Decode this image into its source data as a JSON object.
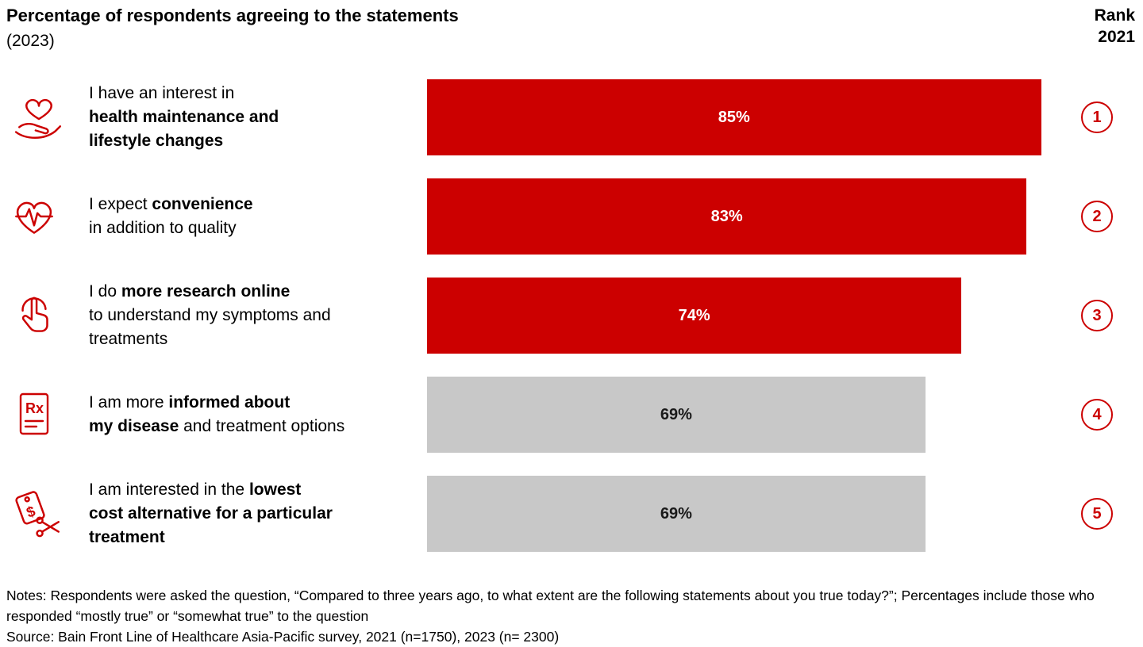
{
  "header": {
    "title": "Percentage of respondents agreeing to the statements",
    "subtitle": "(2023)",
    "rank_label": "Rank",
    "rank_year": "2021"
  },
  "chart_data": {
    "type": "bar",
    "orientation": "horizontal",
    "title": "Percentage of respondents agreeing to the statements (2023)",
    "categories": [
      "I have an interest in health maintenance and lifestyle changes",
      "I expect convenience in addition to quality",
      "I do more research online to understand my symptoms and treatments",
      "I am more informed about my disease and treatment options",
      "I am interested in the lowest cost alternative for a particular treatment"
    ],
    "values": [
      85,
      83,
      74,
      69,
      69
    ],
    "value_labels": [
      "85%",
      "83%",
      "74%",
      "69%",
      "69%"
    ],
    "ranks_2021": [
      1,
      2,
      3,
      4,
      5
    ],
    "xlim": [
      0,
      100
    ],
    "grid": false,
    "legend": "none",
    "highlight_color": "#cc0000",
    "muted_color": "#c8c8c8"
  },
  "statements": [
    {
      "icon": "heart-in-hand-icon",
      "segments": [
        {
          "text": "I have an interest in",
          "bold": false
        },
        {
          "break": true
        },
        {
          "text": "health maintenance and",
          "bold": true
        },
        {
          "break": true
        },
        {
          "text": "lifestyle changes",
          "bold": true
        }
      ],
      "value": 85,
      "value_label": "85%",
      "bar_color": "#cc0000",
      "value_color": "#ffffff",
      "rank": "1"
    },
    {
      "icon": "heart-pulse-icon",
      "segments": [
        {
          "text": "I expect ",
          "bold": false
        },
        {
          "text": "convenience",
          "bold": true
        },
        {
          "break": true
        },
        {
          "text": "in addition to quality",
          "bold": false
        }
      ],
      "value": 83,
      "value_label": "83%",
      "bar_color": "#cc0000",
      "value_color": "#ffffff",
      "rank": "2"
    },
    {
      "icon": "online-research-tap-icon",
      "segments": [
        {
          "text": "I do ",
          "bold": false
        },
        {
          "text": "more research online",
          "bold": true
        },
        {
          "break": true
        },
        {
          "text": "to understand my symptoms and",
          "bold": false
        },
        {
          "break": true
        },
        {
          "text": "treatments",
          "bold": false
        }
      ],
      "value": 74,
      "value_label": "74%",
      "bar_color": "#cc0000",
      "value_color": "#ffffff",
      "rank": "3"
    },
    {
      "icon": "rx-prescription-icon",
      "segments": [
        {
          "text": "I am more ",
          "bold": false
        },
        {
          "text": "informed about",
          "bold": true
        },
        {
          "break": true
        },
        {
          "text": "my disease",
          "bold": true
        },
        {
          "text": " and treatment options",
          "bold": false
        }
      ],
      "value": 69,
      "value_label": "69%",
      "bar_color": "#c8c8c8",
      "value_color": "#1a1a1a",
      "rank": "4"
    },
    {
      "icon": "cost-tag-scissors-icon",
      "segments": [
        {
          "text": "I am interested in the ",
          "bold": false
        },
        {
          "text": "lowest",
          "bold": true
        },
        {
          "break": true
        },
        {
          "text": "cost alternative for a particular",
          "bold": true
        },
        {
          "break": true
        },
        {
          "text": "treatment",
          "bold": true
        }
      ],
      "value": 69,
      "value_label": "69%",
      "bar_color": "#c8c8c8",
      "value_color": "#1a1a1a",
      "rank": "5"
    }
  ],
  "footer": {
    "notes_line": "Notes: Respondents were asked the question, “Compared to three years ago, to what extent are the following statements about you true today?”; Percentages include those who responded “mostly true” or “somewhat true” to the question",
    "source_line": "Source: Bain Front Line of Healthcare Asia-Pacific survey, 2021 (n=1750), 2023 (n= 2300)"
  }
}
